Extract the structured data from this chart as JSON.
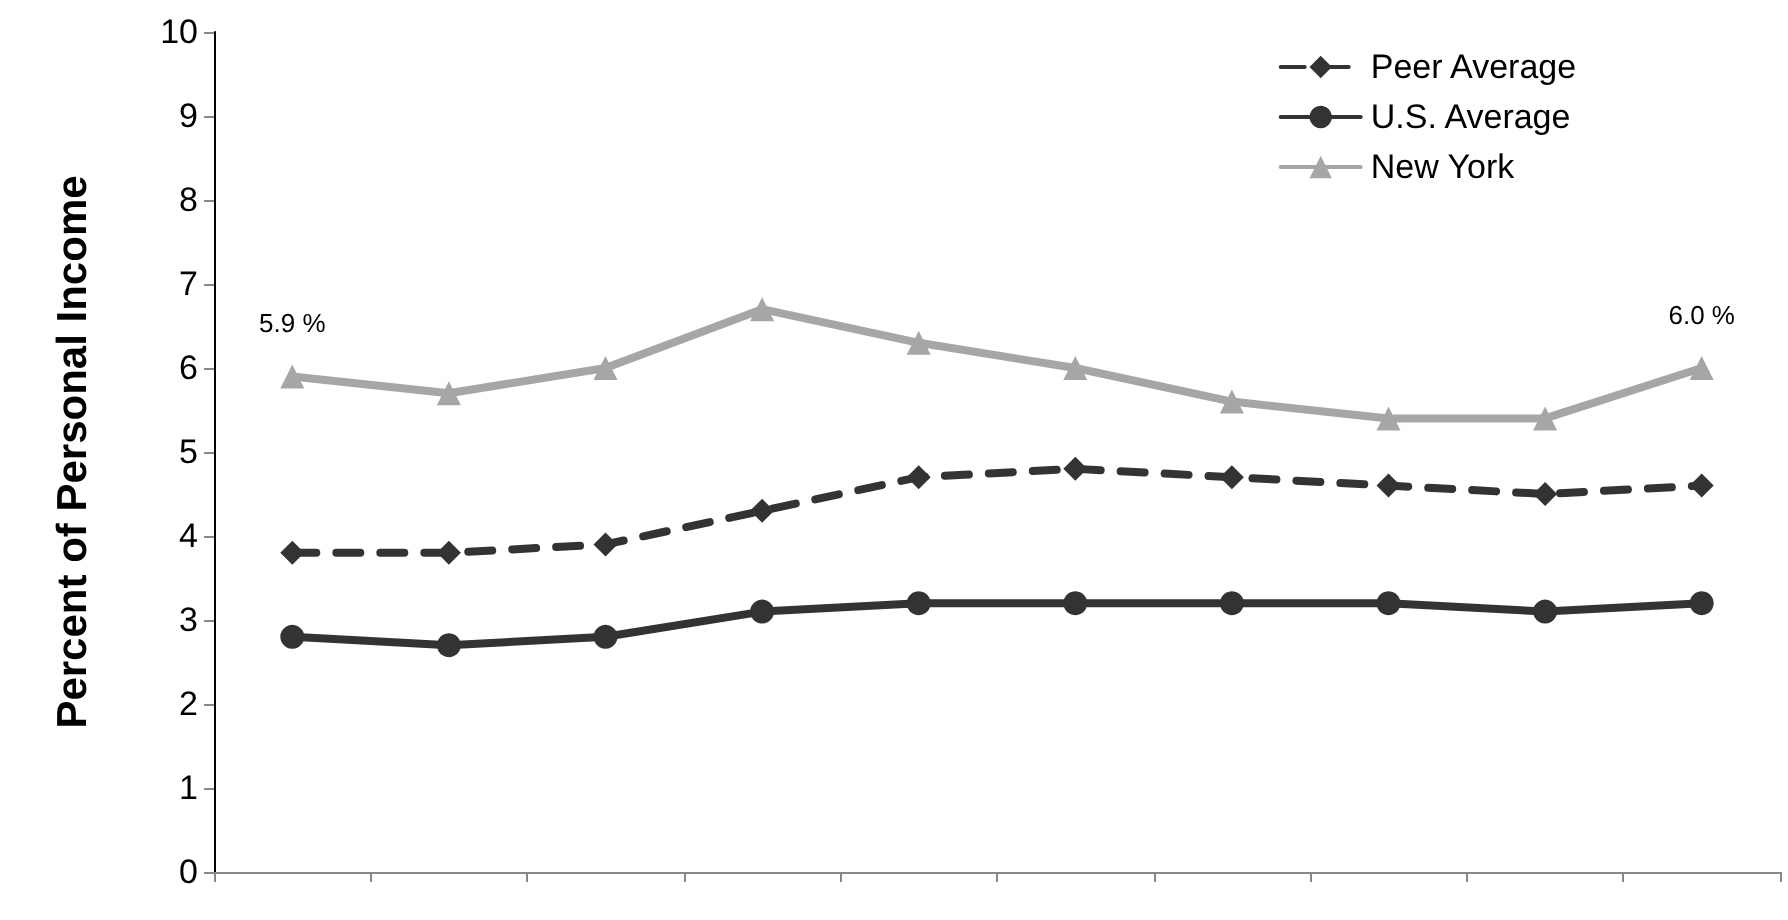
{
  "chart_data": {
    "type": "line",
    "ylabel": "Percent of Personal Income",
    "categories": [
      null,
      null,
      null,
      null,
      null,
      null,
      null,
      null,
      null,
      null
    ],
    "series": [
      {
        "name": "Peer Average",
        "color": "#333333",
        "marker": "diamond",
        "line_style": "dashed",
        "values": [
          3.8,
          3.8,
          3.9,
          4.3,
          4.7,
          4.8,
          4.7,
          4.6,
          4.5,
          4.6
        ]
      },
      {
        "name": "U.S. Average",
        "color": "#333333",
        "marker": "circle",
        "line_style": "solid",
        "values": [
          2.8,
          2.7,
          2.8,
          3.1,
          3.2,
          3.2,
          3.2,
          3.2,
          3.1,
          3.2
        ]
      },
      {
        "name": "New York",
        "color": "#a6a6a6",
        "marker": "triangle",
        "line_style": "solid",
        "values": [
          5.9,
          5.7,
          6.0,
          6.7,
          6.3,
          6.0,
          5.6,
          5.4,
          5.4,
          6.0
        ],
        "value_labels": [
          "5.9 %",
          null,
          null,
          null,
          null,
          null,
          null,
          null,
          null,
          "6.0 %"
        ]
      }
    ],
    "ylim": [
      0,
      10
    ],
    "yticks": [
      0,
      1,
      2,
      3,
      4,
      5,
      6,
      7,
      8,
      9,
      10
    ],
    "grid": false,
    "legend": "top right"
  }
}
